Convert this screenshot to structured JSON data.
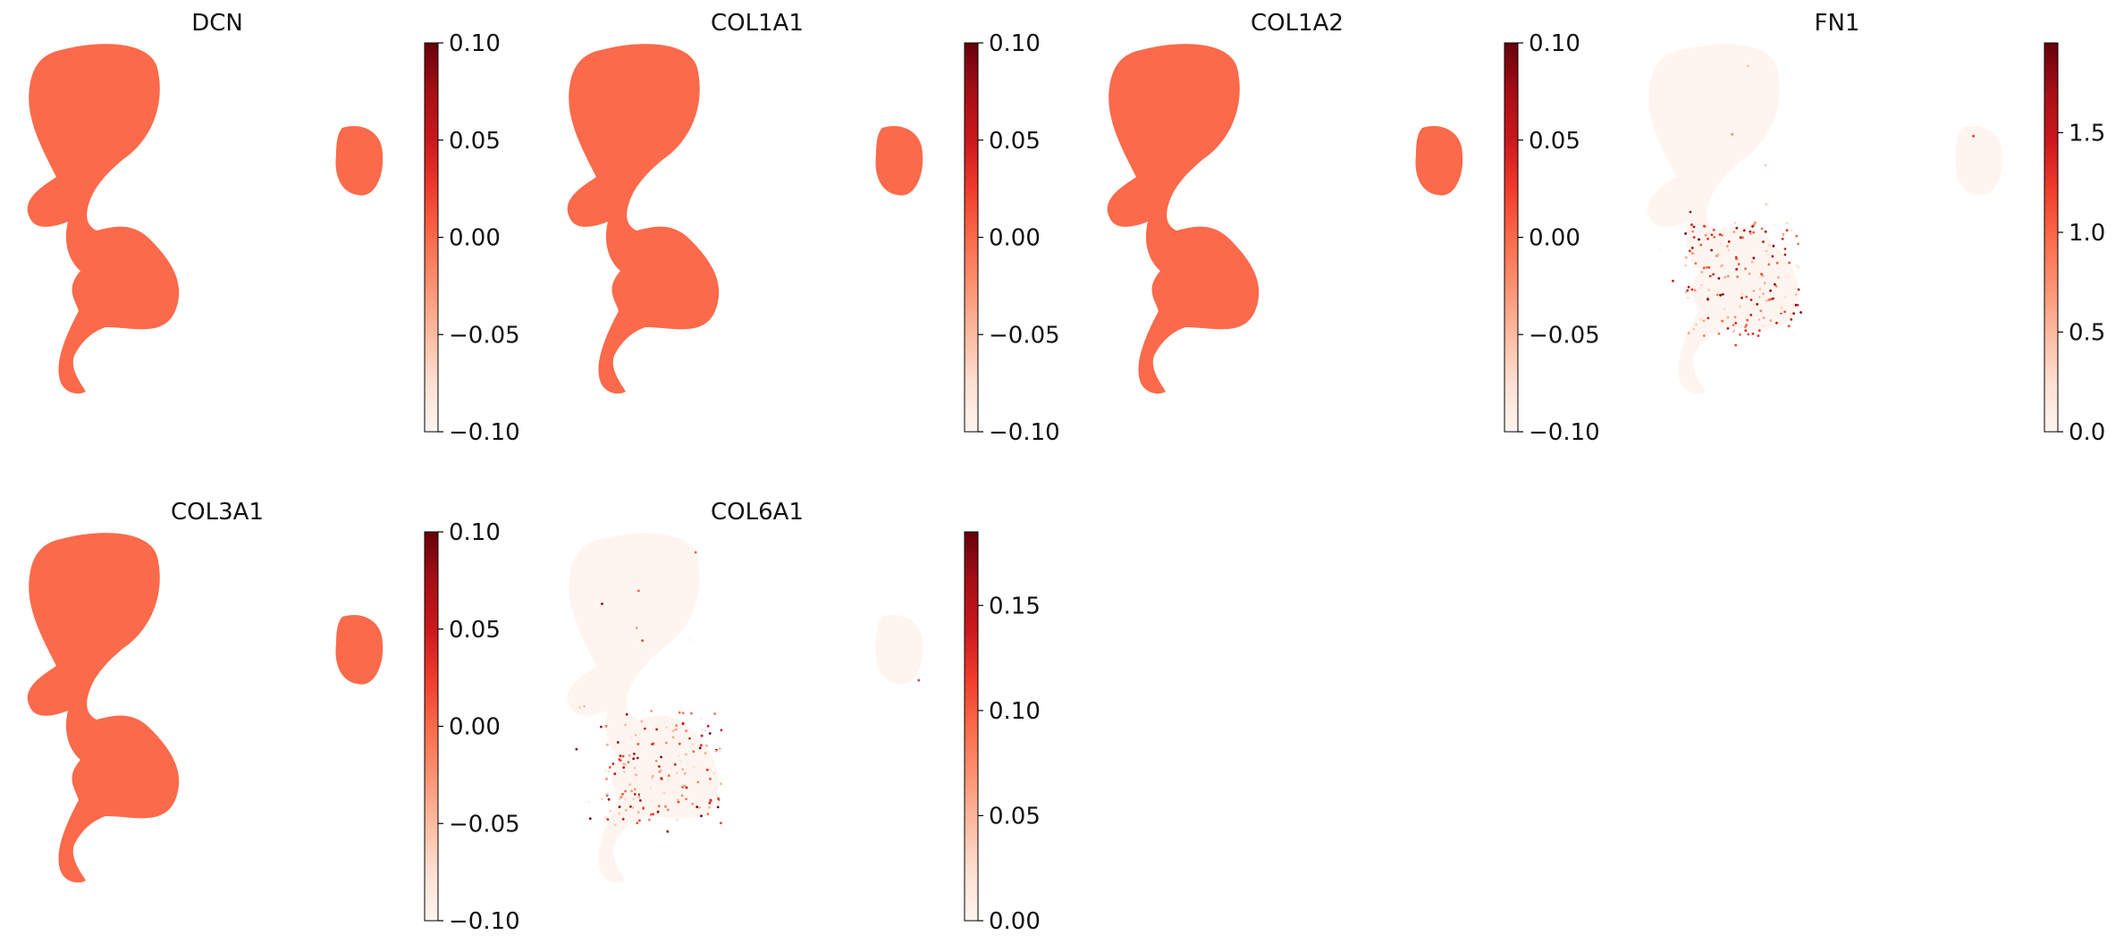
{
  "figure": {
    "background": "#ffffff"
  },
  "colormap": {
    "name": "Reds",
    "stops": [
      "#fff5f0",
      "#fee0d2",
      "#fcbba1",
      "#fc9272",
      "#fb6a4a",
      "#ef3b2c",
      "#cb181d",
      "#a50f15",
      "#67000d"
    ]
  },
  "chart_data": [
    {
      "type": "scatter",
      "title": "DCN",
      "constant_value": 0.0,
      "colorbar": {
        "min": -0.1,
        "max": 0.1,
        "ticks": [
          -0.1,
          -0.05,
          0.0,
          0.05,
          0.1
        ],
        "tick_labels": [
          "−0.10",
          "−0.05",
          "0.00",
          "0.05",
          "0.10"
        ]
      },
      "grid": false
    },
    {
      "type": "scatter",
      "title": "COL1A1",
      "constant_value": 0.0,
      "colorbar": {
        "min": -0.1,
        "max": 0.1,
        "ticks": [
          -0.1,
          -0.05,
          0.0,
          0.05,
          0.1
        ],
        "tick_labels": [
          "−0.10",
          "−0.05",
          "0.00",
          "0.05",
          "0.10"
        ]
      },
      "grid": false
    },
    {
      "type": "scatter",
      "title": "COL1A2",
      "constant_value": 0.0,
      "colorbar": {
        "min": -0.1,
        "max": 0.1,
        "ticks": [
          -0.1,
          -0.05,
          0.0,
          0.05,
          0.1
        ],
        "tick_labels": [
          "−0.10",
          "−0.05",
          "0.00",
          "0.05",
          "0.10"
        ]
      },
      "grid": false
    },
    {
      "type": "scatter",
      "title": "FN1",
      "colorbar": {
        "min": 0.0,
        "max": 1.95,
        "ticks": [
          0.0,
          0.5,
          1.0,
          1.5
        ],
        "tick_labels": [
          "0.0",
          "0.5",
          "1.0",
          "1.5"
        ]
      },
      "grid": false
    },
    {
      "type": "scatter",
      "title": "COL3A1",
      "constant_value": 0.0,
      "colorbar": {
        "min": -0.1,
        "max": 0.1,
        "ticks": [
          -0.1,
          -0.05,
          0.0,
          0.05,
          0.1
        ],
        "tick_labels": [
          "−0.10",
          "−0.05",
          "0.00",
          "0.05",
          "0.10"
        ]
      },
      "grid": false
    },
    {
      "type": "scatter",
      "title": "COL6A1",
      "colorbar": {
        "min": 0.0,
        "max": 0.185,
        "ticks": [
          0.0,
          0.05,
          0.1,
          0.15
        ],
        "tick_labels": [
          "0.00",
          "0.05",
          "0.10",
          "0.15"
        ]
      },
      "grid": false
    }
  ]
}
